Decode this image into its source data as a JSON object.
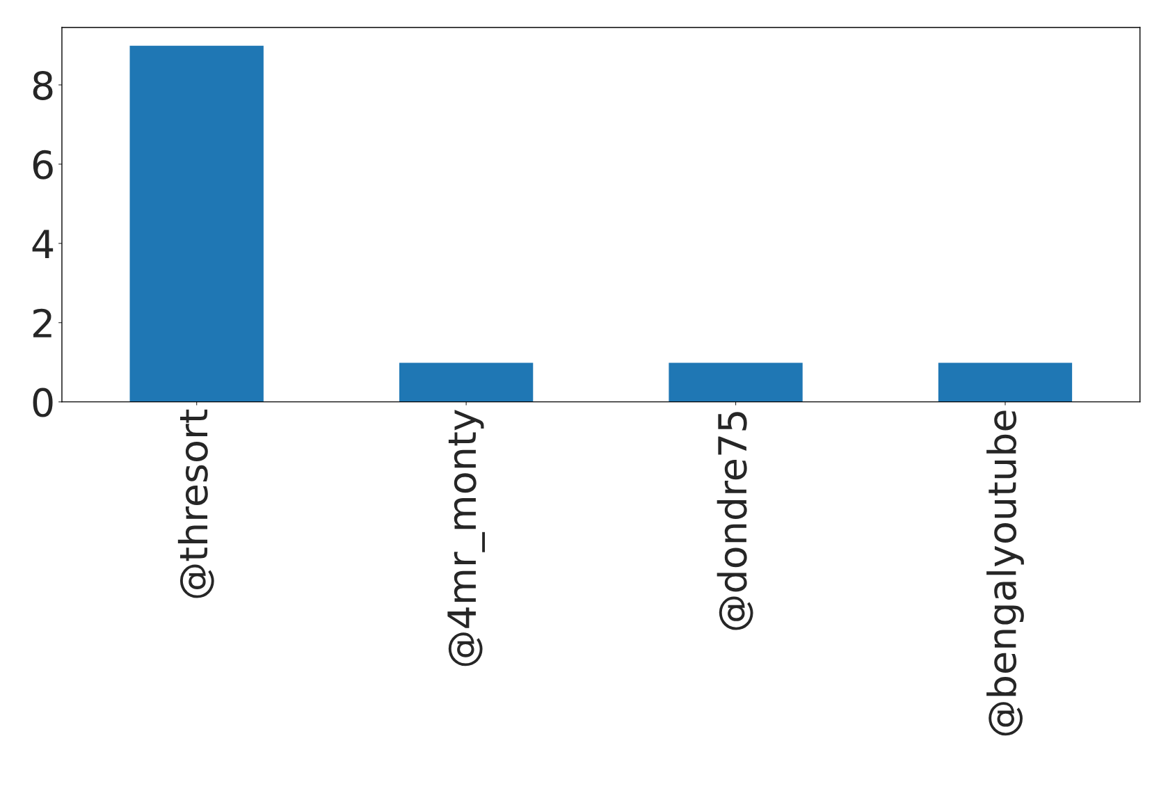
{
  "chart_data": {
    "type": "bar",
    "categories": [
      "@thresort",
      "@4mr_monty",
      "@dondre75",
      "@bengalyoutube"
    ],
    "values": [
      9,
      1,
      1,
      1
    ],
    "color": "#1f77b4",
    "ylim": [
      0,
      9.45
    ],
    "yticks": [
      0,
      2,
      4,
      6,
      8
    ],
    "grid": false,
    "legend": false
  }
}
